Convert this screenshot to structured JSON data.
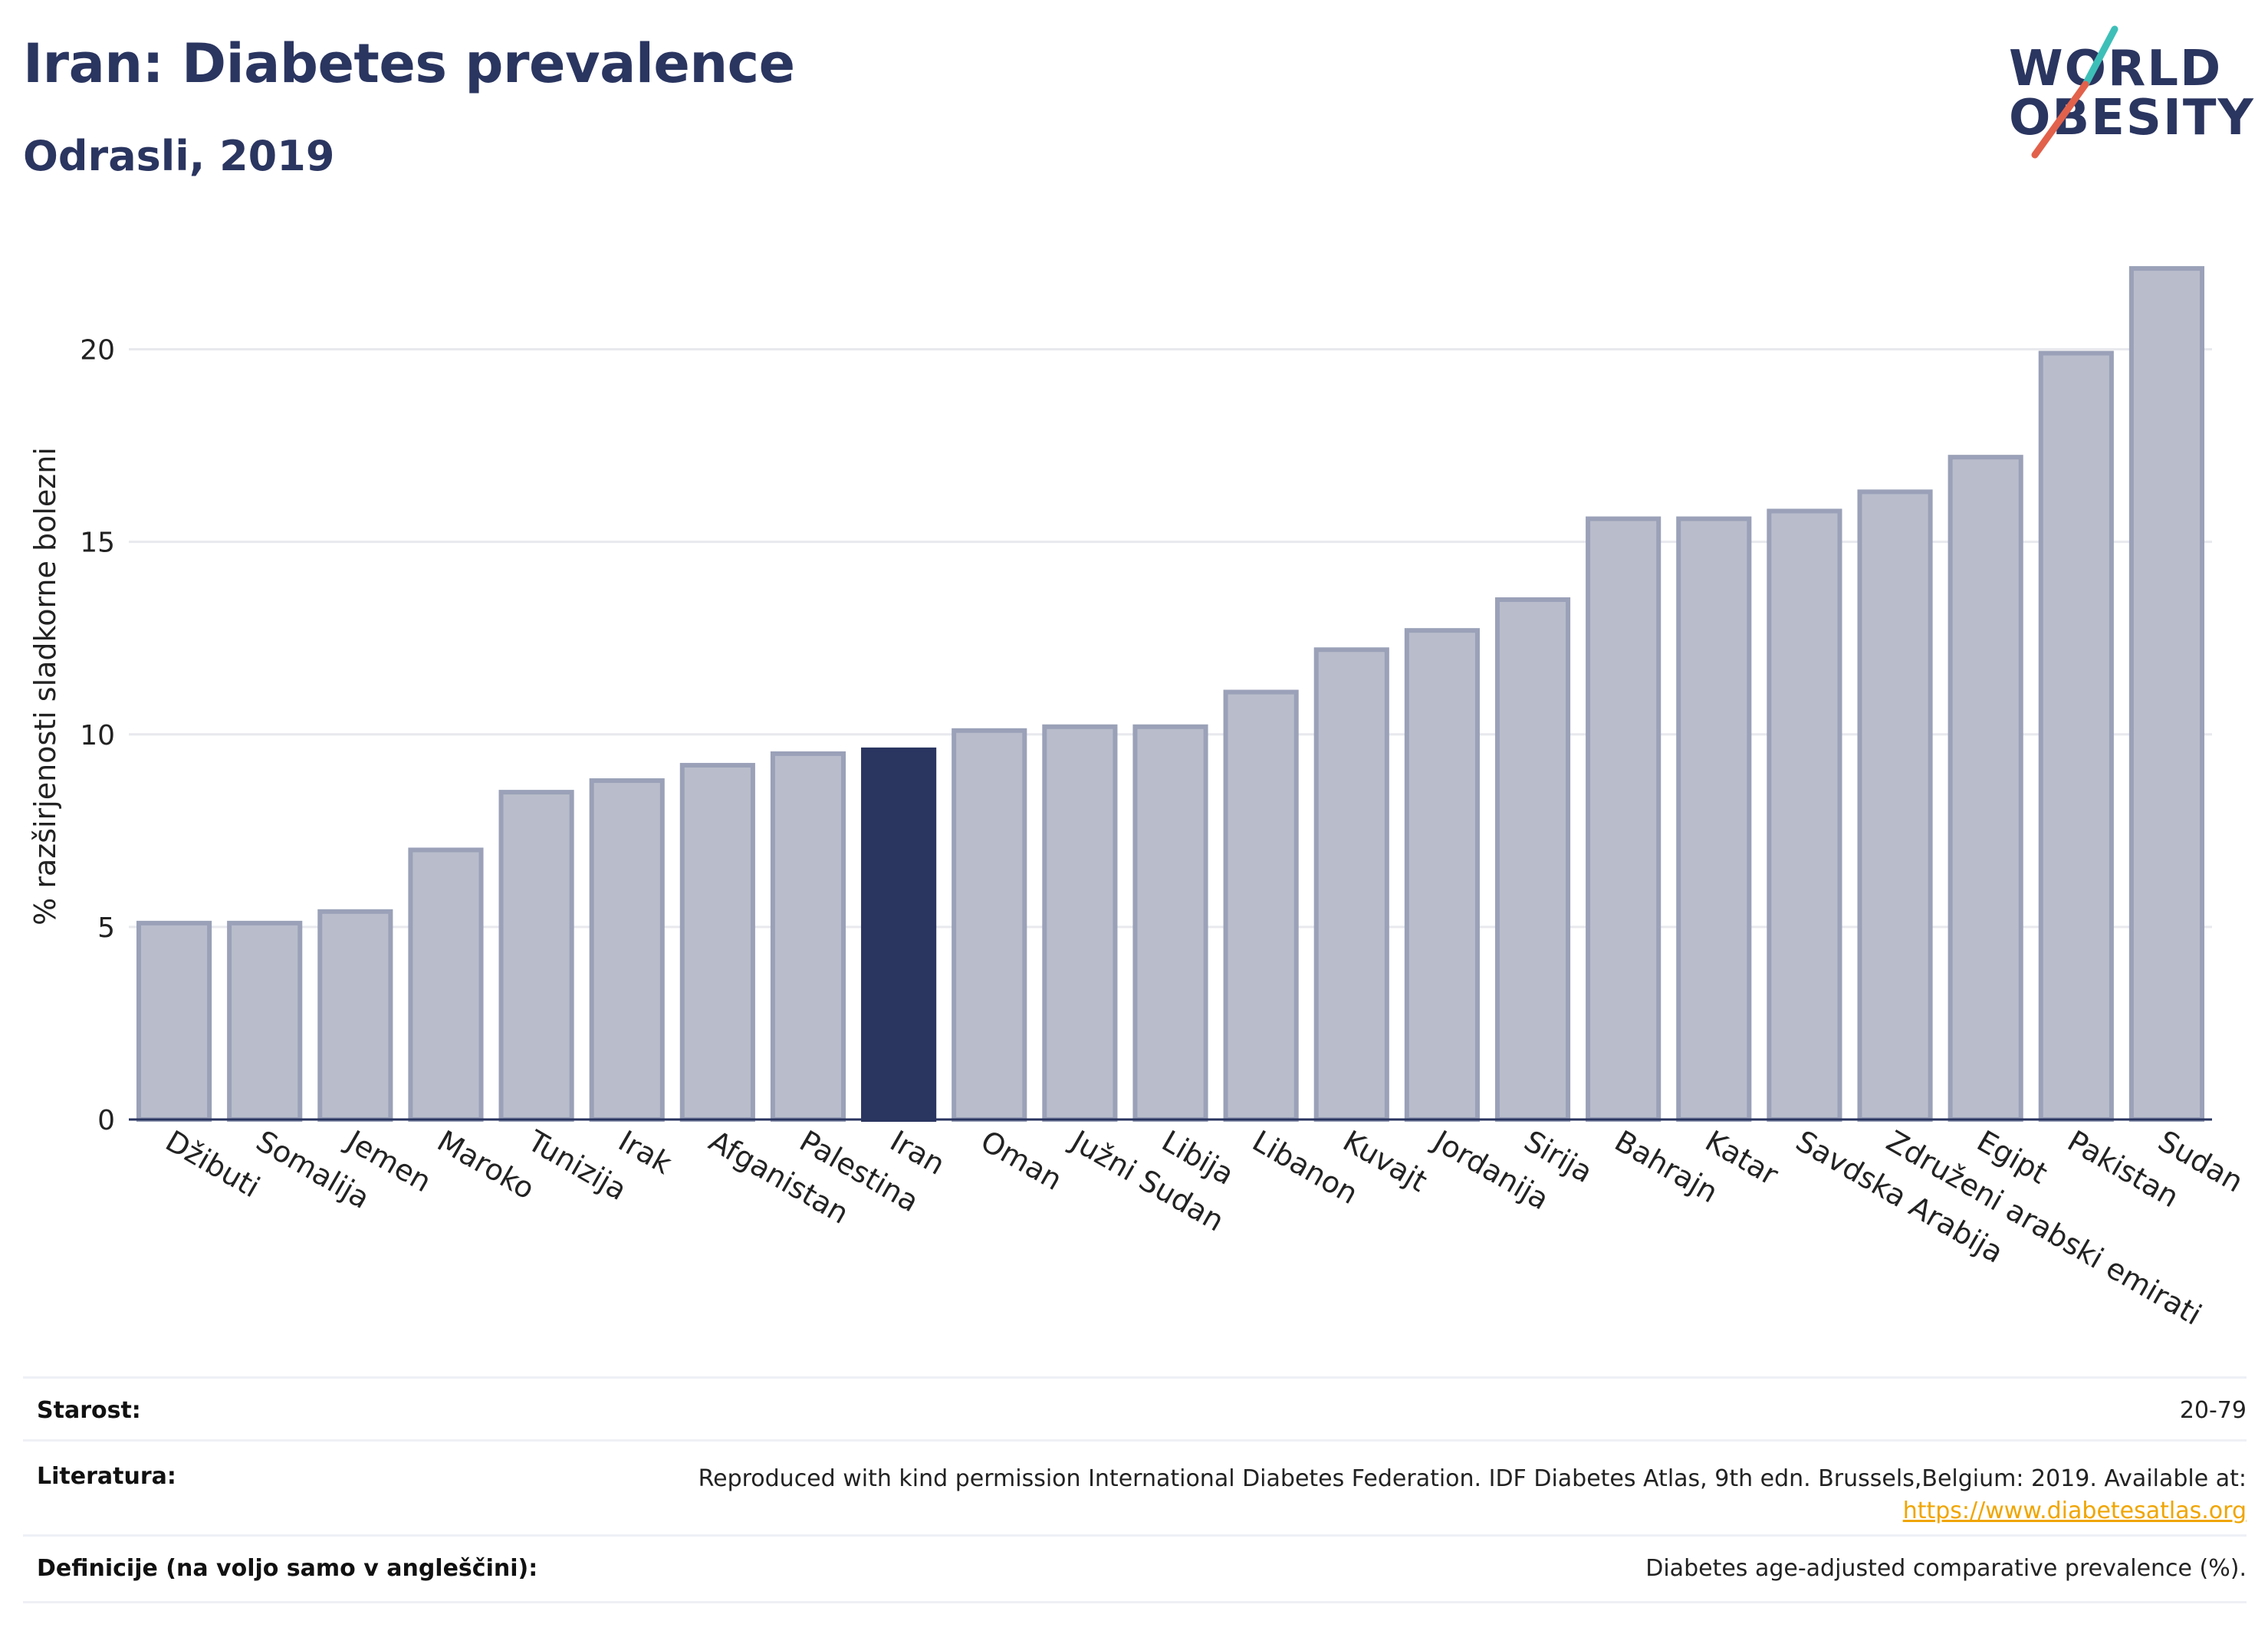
{
  "header": {
    "title": "Iran: Diabetes prevalence",
    "subtitle": "Odrasli, 2019"
  },
  "logo": {
    "line1": "WORLD",
    "line2": "OBESITY"
  },
  "colors": {
    "bar": "#b9bdcb",
    "bar_stroke": "#9aa1b8",
    "highlight": "#2a3560",
    "grid": "#e8e9ee",
    "axis": "#2a3560",
    "slash_teal": "#3dbfb8",
    "slash_red": "#e2614b",
    "link": "#f0a500"
  },
  "chart_data": {
    "type": "bar",
    "ylabel": "% razširjenosti sladkorne bolezni",
    "ylim": [
      0,
      22.5
    ],
    "yticks": [
      0,
      5,
      10,
      15,
      20
    ],
    "grid": true,
    "highlight": "Iran",
    "categories": [
      "Džibuti",
      "Somalija",
      "Jemen",
      "Maroko",
      "Tunizija",
      "Irak",
      "Afganistan",
      "Palestina",
      "Iran",
      "Oman",
      "Južni Sudan",
      "Libija",
      "Libanon",
      "Kuvajt",
      "Jordanija",
      "Sirija",
      "Bahrajn",
      "Katar",
      "Savdska Arabija",
      "Združeni arabski emirati",
      "Egipt",
      "Pakistan",
      "Sudan"
    ],
    "values": [
      5.1,
      5.1,
      5.4,
      7.0,
      8.5,
      8.8,
      9.2,
      9.5,
      9.6,
      10.1,
      10.2,
      10.2,
      11.1,
      12.2,
      12.7,
      13.5,
      15.6,
      15.6,
      15.8,
      16.3,
      17.2,
      19.9,
      22.1
    ]
  },
  "footer": {
    "age_label": "Starost:",
    "age_value": "20-79",
    "ref_label": "Literatura:",
    "ref_value": "Reproduced with kind permission International Diabetes Federation. IDF Diabetes Atlas, 9th edn. Brussels,Belgium: 2019. Available at:",
    "ref_link": "https://www.diabetesatlas.org",
    "def_label": "Definicije (na voljo samo v angleščini):",
    "def_value": "Diabetes age-adjusted comparative prevalence (%)."
  }
}
